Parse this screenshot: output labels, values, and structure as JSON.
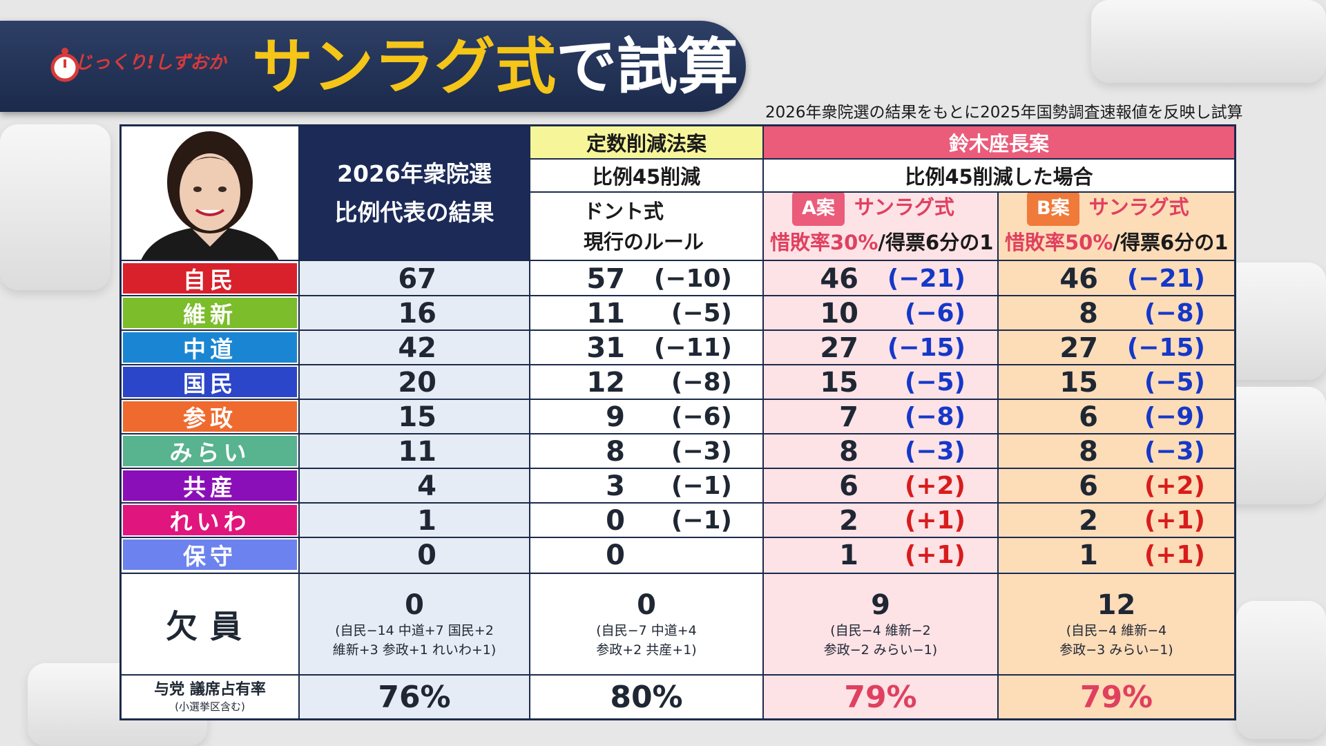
{
  "title": {
    "part1": "サンラグ式",
    "part2": "で試算"
  },
  "logo_text": "じっくり!しずおか",
  "subtitle": "2026年衆院選の結果をもとに2025年国勢調査速報値を反映し試算",
  "headers": {
    "col_b": [
      "2026年衆院選",
      "比例代表の結果"
    ],
    "col_c_top": "定数削減法案",
    "col_c_mid": "比例45削減",
    "col_c_bottom": [
      "ドント式",
      "現行のルール"
    ],
    "col_de_top": "鈴木座長案",
    "col_de_mid": "比例45削減した場合",
    "col_d_tag": "A案",
    "col_d_method": "サンラグ式",
    "col_d_rule": {
      "highlight": "惜敗率30%",
      "rest": "/得票6分の1"
    },
    "col_e_tag": "B案",
    "col_e_method": "サンラグ式",
    "col_e_rule": {
      "highlight": "惜敗率50%",
      "rest": "/得票6分の1"
    }
  },
  "colors": {
    "navy": "#1b2a57",
    "accent_pink": "#ea5c7a",
    "tag_pink": "#ea5c7a",
    "tag_orange": "#f07a3a",
    "negative": "#1638c8",
    "positive": "#d81c1c"
  },
  "rows": [
    {
      "party": "自民",
      "color": "#d9212b",
      "b": "67",
      "c": "57",
      "c_diff": "(−10)",
      "d": "46",
      "d_diff": "(−21)",
      "e": "46",
      "e_diff": "(−21)"
    },
    {
      "party": "維新",
      "color": "#7bbd2a",
      "b": "16",
      "c": "11",
      "c_diff": "(−5)",
      "d": "10",
      "d_diff": "(−6)",
      "e": "8",
      "e_diff": "(−8)"
    },
    {
      "party": "中道",
      "color": "#1a86d3",
      "b": "42",
      "c": "31",
      "c_diff": "(−11)",
      "d": "27",
      "d_diff": "(−15)",
      "e": "27",
      "e_diff": "(−15)"
    },
    {
      "party": "国民",
      "color": "#2c46c9",
      "b": "20",
      "c": "12",
      "c_diff": "(−8)",
      "d": "15",
      "d_diff": "(−5)",
      "e": "15",
      "e_diff": "(−5)"
    },
    {
      "party": "参政",
      "color": "#ef6a2e",
      "b": "15",
      "c": "9",
      "c_diff": "(−6)",
      "d": "7",
      "d_diff": "(−8)",
      "e": "6",
      "e_diff": "(−9)"
    },
    {
      "party": "みらい",
      "color": "#58b38f",
      "b": "11",
      "c": "8",
      "c_diff": "(−3)",
      "d": "8",
      "d_diff": "(−3)",
      "e": "8",
      "e_diff": "(−3)"
    },
    {
      "party": "共産",
      "color": "#8b0fb8",
      "b": "4",
      "c": "3",
      "c_diff": "(−1)",
      "d": "6",
      "d_diff": "(+2)",
      "e": "6",
      "e_diff": "(+2)"
    },
    {
      "party": "れいわ",
      "color": "#e1157e",
      "b": "1",
      "c": "0",
      "c_diff": "(−1)",
      "d": "2",
      "d_diff": "(+1)",
      "e": "2",
      "e_diff": "(+1)"
    },
    {
      "party": "保守",
      "color": "#6c82ee",
      "b": "0",
      "c": "0",
      "c_diff": "",
      "d": "1",
      "d_diff": "(+1)",
      "e": "1",
      "e_diff": "(+1)"
    }
  ],
  "vacancy": {
    "label": "欠員",
    "b": {
      "value": "0",
      "detail": [
        "(自民−14 中道+7 国民+2",
        "維新+3 参政+1 れいわ+1)"
      ]
    },
    "c": {
      "value": "0",
      "detail": [
        "(自民−7 中道+4",
        "参政+2 共産+1)"
      ]
    },
    "d": {
      "value": "9",
      "detail": [
        "(自民−4 維新−2",
        "参政−2 みらい−1)"
      ]
    },
    "e": {
      "value": "12",
      "detail": [
        "(自民−4 維新−4",
        "参政−3 みらい−1)"
      ]
    }
  },
  "share": {
    "label": "与党 議席占有率",
    "sublabel": "(小選挙区含む)",
    "b": "76%",
    "c": "80%",
    "d": "79%",
    "e": "79%"
  }
}
